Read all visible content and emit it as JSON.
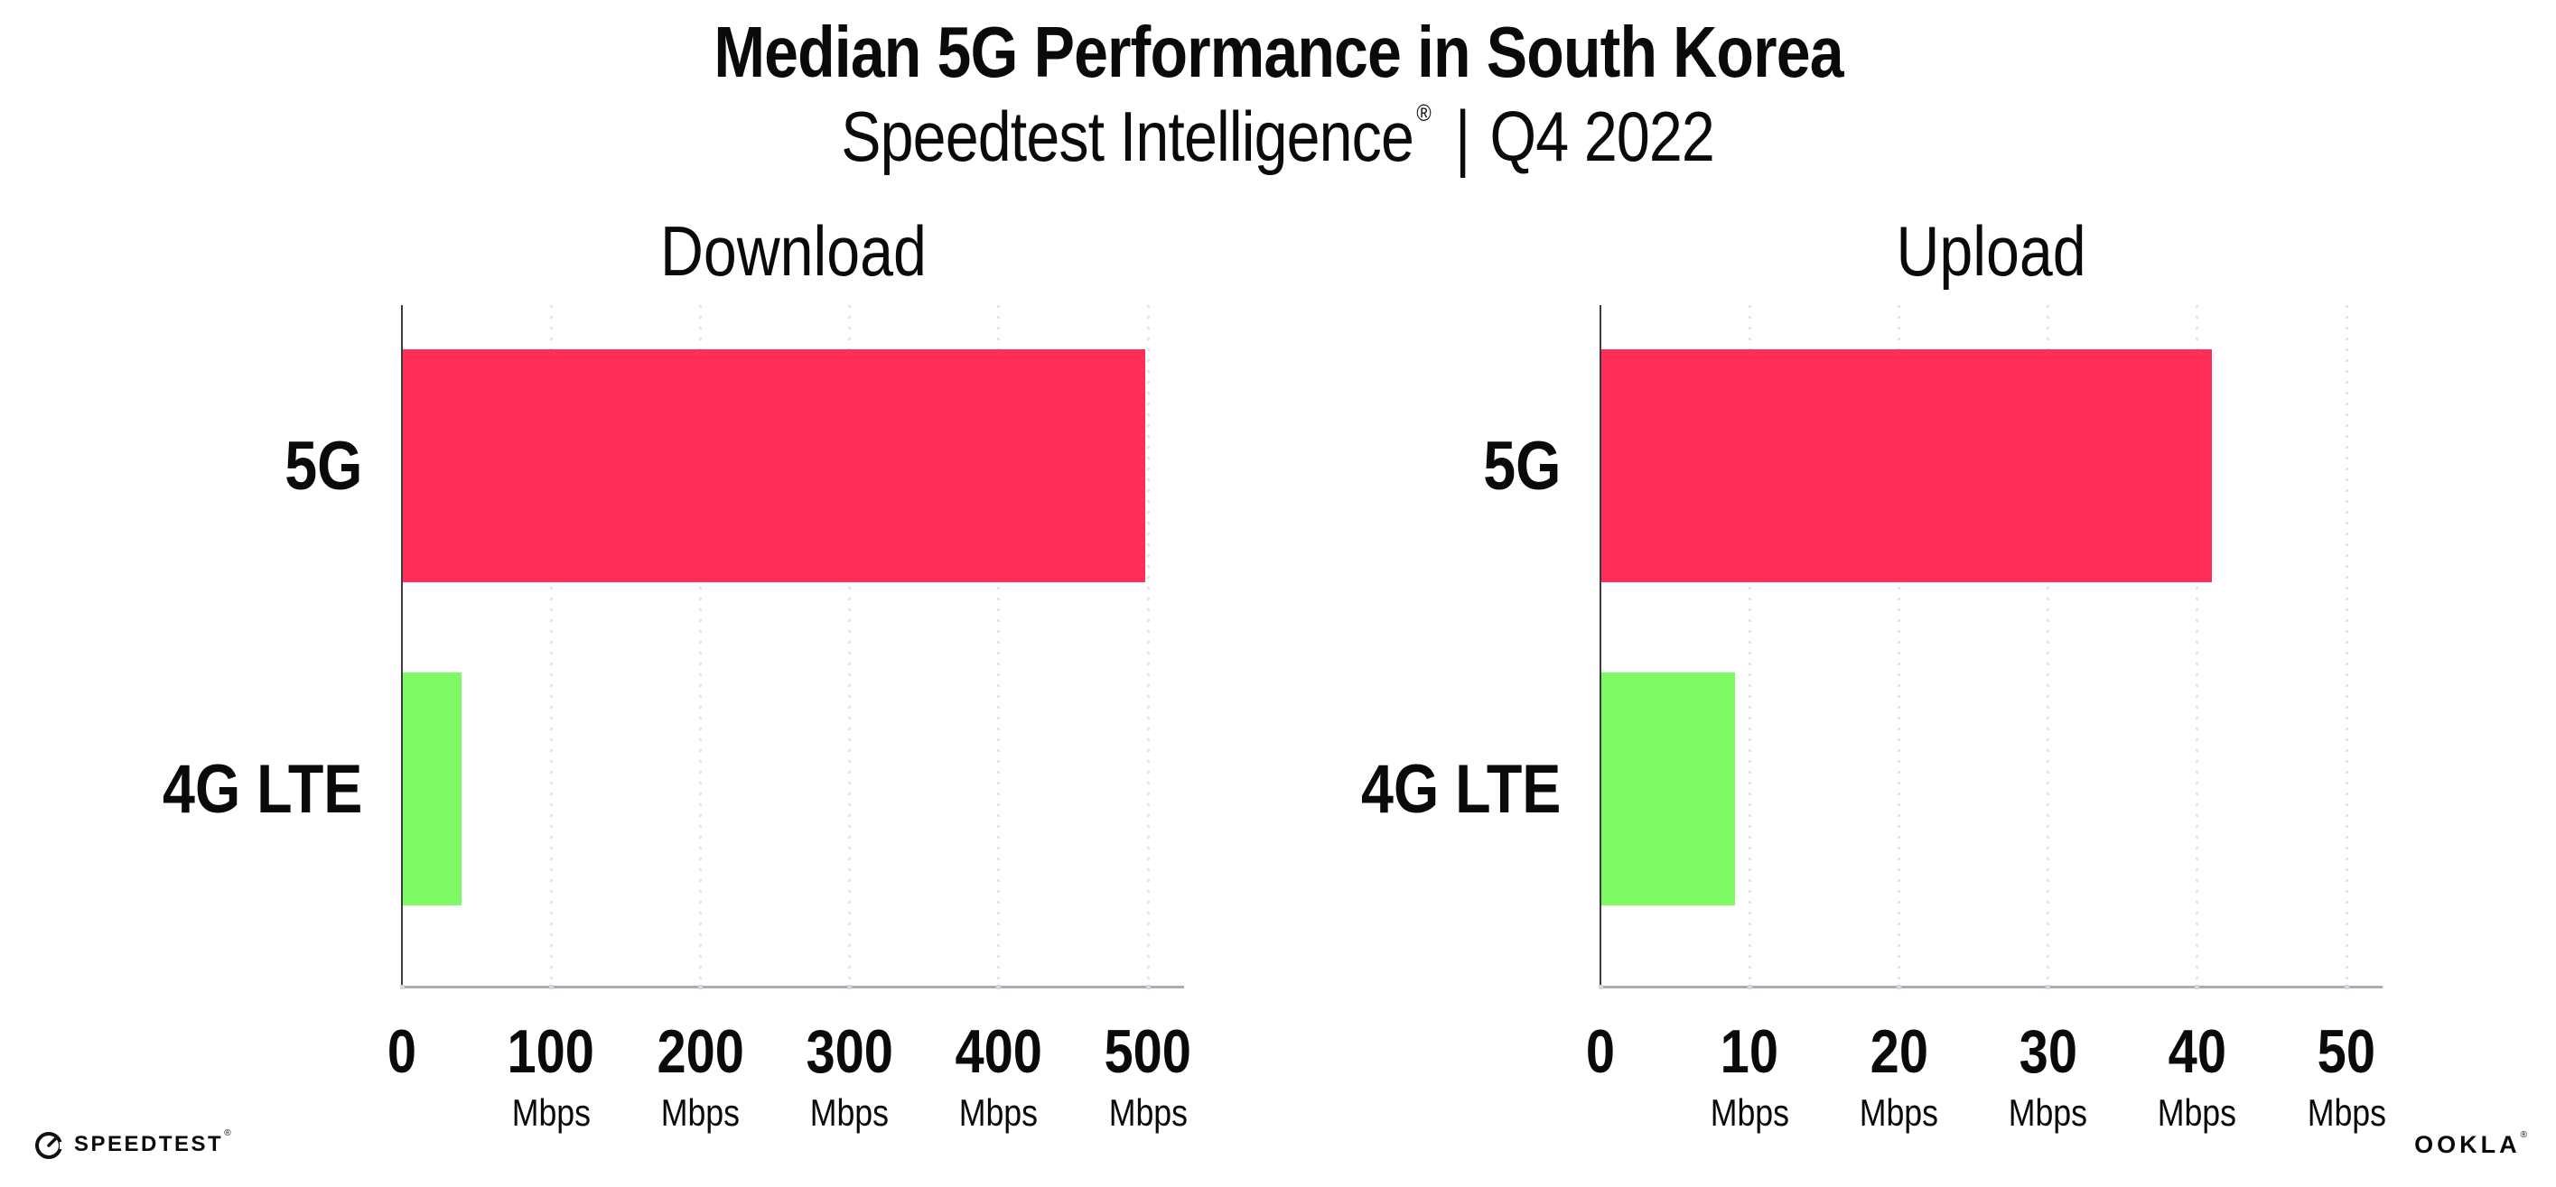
{
  "header": {
    "title": "Median 5G Performance in South Korea",
    "subtitle": {
      "brand": "Speedtest Intelligence",
      "registered_mark": "®",
      "separator": "|",
      "period": "Q4 2022"
    }
  },
  "chart_data": [
    {
      "type": "bar",
      "orientation": "horizontal",
      "title": "Download",
      "categories": [
        "5G",
        "4G LTE"
      ],
      "values": [
        498,
        40
      ],
      "unit": "Mbps",
      "xlim": [
        0,
        500
      ],
      "xticks": [
        0,
        100,
        200,
        300,
        400,
        500
      ],
      "bar_colors": [
        "#FF2E58",
        "#7EFA65"
      ],
      "grid": "vertical-dotted",
      "legend": "none"
    },
    {
      "type": "bar",
      "orientation": "horizontal",
      "title": "Upload",
      "categories": [
        "5G",
        "4G LTE"
      ],
      "values": [
        41,
        9
      ],
      "unit": "Mbps",
      "xlim": [
        0,
        50
      ],
      "xticks": [
        0,
        10,
        20,
        30,
        40,
        50
      ],
      "bar_colors": [
        "#FF2E58",
        "#7EFA65"
      ],
      "grid": "vertical-dotted",
      "legend": "none"
    }
  ],
  "footer": {
    "speedtest_label": "SPEEDTEST",
    "speedtest_mark": "®",
    "ookla_label": "OOKLA",
    "ookla_mark": "®"
  },
  "colors": {
    "bar_5g": "#FF2E58",
    "bar_4g_lte": "#7EFA65",
    "grid_dots": "#e3e3ef",
    "tick_dots": "#d6d6e2",
    "x_axis": "#acacb4",
    "y_axis": "#3b3b42",
    "text": "#0a0a0b",
    "background": "#ffffff"
  }
}
